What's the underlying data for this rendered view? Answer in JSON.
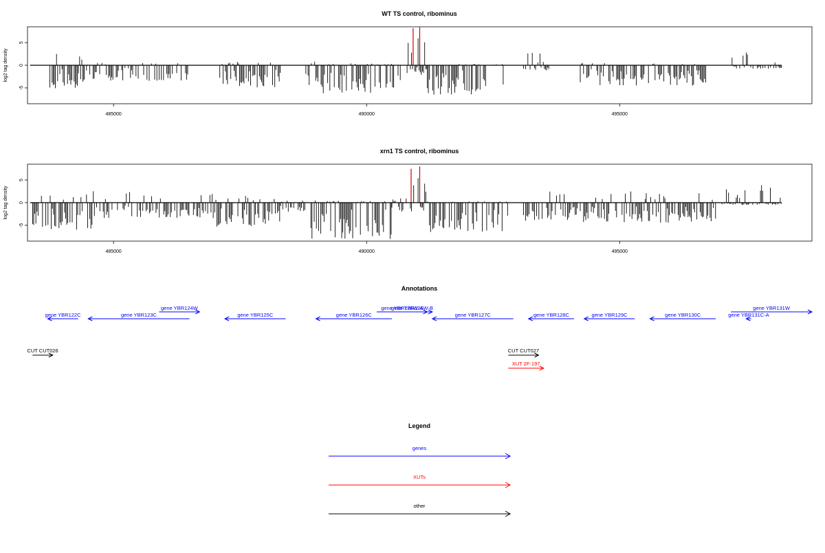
{
  "chart_data": [
    {
      "type": "bar",
      "title": "WT TS control, ribominus",
      "ylabel": "log2 tag density",
      "xlabel": "",
      "xlim": [
        483300,
        498800
      ],
      "ylim": [
        -8.5,
        8.5
      ],
      "x_ticks": [
        485000,
        490000,
        495000
      ],
      "x_tick_labels": [
        "485000",
        "490000",
        "495000"
      ],
      "y_ticks": [
        5,
        0,
        -5
      ],
      "y_tick_labels": [
        "5",
        "0",
        "-5"
      ],
      "baseline": [
        483350,
        498200
      ],
      "grid": false,
      "series": [
        {
          "color": "#000000",
          "regions": [
            {
              "x0": 483700,
              "x1": 484400,
              "min": -5.2,
              "max": 2.5
            },
            {
              "x0": 484400,
              "x1": 486500,
              "min": -3.5,
              "max": 0.5
            },
            {
              "x0": 487100,
              "x1": 488300,
              "min": -5.0,
              "max": 0.8
            },
            {
              "x0": 488800,
              "x1": 489100,
              "min": -4.5,
              "max": 1.0
            },
            {
              "x0": 489100,
              "x1": 490700,
              "min": -6.2,
              "max": 0.5
            },
            {
              "x0": 490800,
              "x1": 491200,
              "min": -2.5,
              "max": 6.5
            },
            {
              "x0": 491200,
              "x1": 492800,
              "min": -6.5,
              "max": 0.3
            },
            {
              "x0": 493100,
              "x1": 493600,
              "min": -1.2,
              "max": 2.8
            },
            {
              "x0": 494200,
              "x1": 496700,
              "min": -4.5,
              "max": 0.5
            },
            {
              "x0": 497200,
              "x1": 498200,
              "min": -0.8,
              "max": 3.0
            }
          ]
        },
        {
          "color": "#cc0000",
          "spikes": [
            {
              "x": 490920,
              "y": 8.2
            },
            {
              "x": 491050,
              "y": 8.4
            }
          ]
        }
      ]
    },
    {
      "type": "bar",
      "title": "xrn1 TS control, ribominus",
      "ylabel": "log2 tag density",
      "xlabel": "",
      "xlim": [
        483300,
        498800
      ],
      "ylim": [
        -8.5,
        8.5
      ],
      "x_ticks": [
        485000,
        490000,
        495000
      ],
      "x_tick_labels": [
        "485000",
        "490000",
        "495000"
      ],
      "y_ticks": [
        5,
        0,
        -5
      ],
      "y_tick_labels": [
        "5",
        "0",
        "-5"
      ],
      "baseline": [
        483350,
        498200
      ],
      "grid": false,
      "series": [
        {
          "color": "#000000",
          "regions": [
            {
              "x0": 483400,
              "x1": 484600,
              "min": -6.0,
              "max": 2.5
            },
            {
              "x0": 484600,
              "x1": 487000,
              "min": -3.5,
              "max": 2.8
            },
            {
              "x0": 487000,
              "x1": 488300,
              "min": -5.5,
              "max": 1.5
            },
            {
              "x0": 488300,
              "x1": 488800,
              "min": -2.0,
              "max": 1.0
            },
            {
              "x0": 488900,
              "x1": 490500,
              "min": -8.0,
              "max": 0.5
            },
            {
              "x0": 490500,
              "x1": 490800,
              "min": -2.0,
              "max": 1.0
            },
            {
              "x0": 490800,
              "x1": 491200,
              "min": -2.0,
              "max": 7.0
            },
            {
              "x0": 491200,
              "x1": 492800,
              "min": -6.5,
              "max": 0.5
            },
            {
              "x0": 493100,
              "x1": 494200,
              "min": -4.0,
              "max": 2.5
            },
            {
              "x0": 494200,
              "x1": 496900,
              "min": -4.5,
              "max": 2.5
            },
            {
              "x0": 497000,
              "x1": 498200,
              "min": -0.5,
              "max": 4.5
            }
          ]
        },
        {
          "color": "#cc0000",
          "spikes": [
            {
              "x": 490880,
              "y": 7.5
            },
            {
              "x": 491050,
              "y": 8.0
            }
          ]
        }
      ]
    }
  ],
  "annotations": {
    "title": "Annotations",
    "xlim": [
      483300,
      498800
    ],
    "genes": [
      {
        "label": "gene YBR122C",
        "x0": 483700,
        "x1": 484300,
        "dir": "left",
        "row": 0
      },
      {
        "label": "gene YBR123C",
        "x0": 484500,
        "x1": 486500,
        "dir": "left",
        "row": 0
      },
      {
        "label": "gene YBR124W",
        "x0": 485900,
        "x1": 486700,
        "dir": "right",
        "row": 1
      },
      {
        "label": "gene YBR125C",
        "x0": 487200,
        "x1": 488400,
        "dir": "left",
        "row": 0
      },
      {
        "label": "gene YBR126C",
        "x0": 489000,
        "x1": 490500,
        "dir": "left",
        "row": 0
      },
      {
        "label": "gene YBR126W-A",
        "x0": 490200,
        "x1": 491200,
        "dir": "right",
        "row": 1
      },
      {
        "label": "gene YBR126W-B",
        "x0": 490500,
        "x1": 491300,
        "dir": "right",
        "row": 1
      },
      {
        "label": "gene YBR127C",
        "x0": 491300,
        "x1": 492900,
        "dir": "left",
        "row": 0
      },
      {
        "label": "gene YBR128C",
        "x0": 493200,
        "x1": 494100,
        "dir": "left",
        "row": 0
      },
      {
        "label": "gene YBR129C",
        "x0": 494300,
        "x1": 495300,
        "dir": "left",
        "row": 0
      },
      {
        "label": "gene YBR130C",
        "x0": 495600,
        "x1": 496900,
        "dir": "left",
        "row": 0
      },
      {
        "label": "gene YBR131W",
        "x0": 497200,
        "x1": 498800,
        "dir": "right",
        "row": 1
      },
      {
        "label": "gene YBR131C-A",
        "x0": 497500,
        "x1": 497600,
        "dir": "left",
        "row": 0
      }
    ],
    "others": [
      {
        "label": "CUT CUT026",
        "x0": 483400,
        "x1": 483800,
        "dir": "right",
        "color": "#000000"
      },
      {
        "label": "CUT CUT027",
        "x0": 492800,
        "x1": 493400,
        "dir": "right",
        "color": "#000000"
      },
      {
        "label": "XUT 2F-197",
        "x0": 492800,
        "x1": 493500,
        "dir": "right",
        "color": "#ff0000"
      }
    ]
  },
  "legend": {
    "title": "Legend",
    "items": [
      {
        "label": "genes",
        "color": "#0000ff"
      },
      {
        "label": "XUTs",
        "color": "#ff0000"
      },
      {
        "label": "other",
        "color": "#000000"
      }
    ]
  }
}
